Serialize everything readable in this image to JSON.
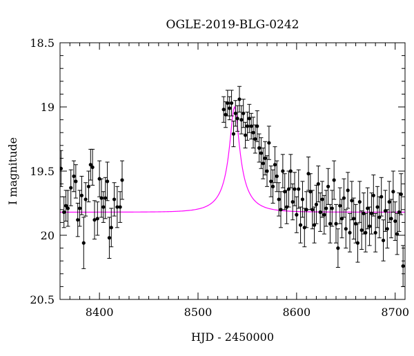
{
  "chart_data": {
    "type": "scatter",
    "title": "OGLE-2019-BLG-0242",
    "xlabel": "HJD - 2450000",
    "ylabel": "I magnitude",
    "xlim": [
      8360,
      8710
    ],
    "ylim": [
      20.5,
      18.5
    ],
    "y_inverted": true,
    "x_ticks": [
      "8400",
      "8500",
      "8600",
      "8700"
    ],
    "y_ticks": [
      "18.5",
      "19",
      "19.5",
      "20",
      "20.5"
    ],
    "colors": {
      "data": "#000000",
      "model": "#ff00ff",
      "axes": "#000000"
    },
    "legend": "none",
    "grid": false,
    "series": [
      {
        "kind": "points_with_errorbars",
        "points": [
          [
            8361,
            19.48,
            0.14
          ],
          [
            8364,
            19.82,
            0.12
          ],
          [
            8366,
            19.77,
            0.12
          ],
          [
            8368,
            19.79,
            0.14
          ],
          [
            8371,
            19.63,
            0.14
          ],
          [
            8374,
            19.54,
            0.12
          ],
          [
            8376,
            19.58,
            0.13
          ],
          [
            8378,
            19.88,
            0.13
          ],
          [
            8380,
            19.79,
            0.14
          ],
          [
            8382,
            19.69,
            0.15
          ],
          [
            8384,
            20.06,
            0.2
          ],
          [
            8386,
            19.72,
            0.13
          ],
          [
            8389,
            19.62,
            0.12
          ],
          [
            8391,
            19.45,
            0.12
          ],
          [
            8393,
            19.47,
            0.14
          ],
          [
            8395,
            19.88,
            0.15
          ],
          [
            8398,
            19.87,
            0.13
          ],
          [
            8400,
            19.56,
            0.14
          ],
          [
            8402,
            19.71,
            0.15
          ],
          [
            8404,
            19.78,
            0.12
          ],
          [
            8406,
            19.71,
            0.16
          ],
          [
            8408,
            19.58,
            0.15
          ],
          [
            8410,
            20.02,
            0.16
          ],
          [
            8412,
            19.94,
            0.15
          ],
          [
            8415,
            19.72,
            0.13
          ],
          [
            8418,
            19.78,
            0.16
          ],
          [
            8421,
            19.78,
            0.12
          ],
          [
            8423,
            19.57,
            0.15
          ],
          [
            8526,
            19.02,
            0.1
          ],
          [
            8528,
            19.06,
            0.1
          ],
          [
            8530,
            18.97,
            0.1
          ],
          [
            8532,
            19.01,
            0.09
          ],
          [
            8534,
            18.97,
            0.1
          ],
          [
            8536,
            19.21,
            0.1
          ],
          [
            8538,
            19.05,
            0.1
          ],
          [
            8540,
            19.09,
            0.1
          ],
          [
            8542,
            18.94,
            0.1
          ],
          [
            8544,
            19.1,
            0.11
          ],
          [
            8546,
            19.05,
            0.11
          ],
          [
            8548,
            19.22,
            0.1
          ],
          [
            8550,
            19.15,
            0.11
          ],
          [
            8552,
            19.09,
            0.11
          ],
          [
            8554,
            19.15,
            0.1
          ],
          [
            8556,
            19.2,
            0.12
          ],
          [
            8558,
            19.25,
            0.11
          ],
          [
            8560,
            19.15,
            0.12
          ],
          [
            8562,
            19.32,
            0.11
          ],
          [
            8564,
            19.36,
            0.12
          ],
          [
            8566,
            19.44,
            0.12
          ],
          [
            8568,
            19.4,
            0.13
          ],
          [
            8570,
            19.5,
            0.12
          ],
          [
            8572,
            19.28,
            0.13
          ],
          [
            8574,
            19.58,
            0.12
          ],
          [
            8576,
            19.62,
            0.13
          ],
          [
            8578,
            19.45,
            0.14
          ],
          [
            8580,
            19.54,
            0.12
          ],
          [
            8582,
            19.72,
            0.13
          ],
          [
            8584,
            19.8,
            0.14
          ],
          [
            8586,
            19.5,
            0.13
          ],
          [
            8588,
            19.66,
            0.14
          ],
          [
            8590,
            19.78,
            0.13
          ],
          [
            8592,
            19.64,
            0.14
          ],
          [
            8594,
            19.5,
            0.13
          ],
          [
            8596,
            19.74,
            0.14
          ],
          [
            8598,
            19.64,
            0.13
          ],
          [
            8600,
            19.84,
            0.14
          ],
          [
            8602,
            19.64,
            0.15
          ],
          [
            8604,
            19.92,
            0.14
          ],
          [
            8606,
            19.72,
            0.14
          ],
          [
            8608,
            19.94,
            0.15
          ],
          [
            8610,
            19.8,
            0.14
          ],
          [
            8612,
            19.52,
            0.13
          ],
          [
            8614,
            19.66,
            0.14
          ],
          [
            8616,
            19.8,
            0.15
          ],
          [
            8618,
            19.92,
            0.14
          ],
          [
            8620,
            19.76,
            0.15
          ],
          [
            8622,
            19.6,
            0.14
          ],
          [
            8624,
            19.82,
            0.15
          ],
          [
            8626,
            19.72,
            0.14
          ],
          [
            8628,
            19.84,
            0.15
          ],
          [
            8630,
            19.79,
            0.14
          ],
          [
            8632,
            19.62,
            0.14
          ],
          [
            8634,
            19.91,
            0.15
          ],
          [
            8636,
            19.79,
            0.14
          ],
          [
            8638,
            19.57,
            0.15
          ],
          [
            8640,
            19.91,
            0.15
          ],
          [
            8642,
            20.1,
            0.15
          ],
          [
            8644,
            19.77,
            0.14
          ],
          [
            8646,
            19.87,
            0.15
          ],
          [
            8648,
            19.71,
            0.15
          ],
          [
            8650,
            19.95,
            0.15
          ],
          [
            8652,
            19.65,
            0.14
          ],
          [
            8654,
            19.98,
            0.15
          ],
          [
            8656,
            19.73,
            0.15
          ],
          [
            8658,
            19.87,
            0.16
          ],
          [
            8660,
            19.91,
            0.15
          ],
          [
            8662,
            20.06,
            0.15
          ],
          [
            8664,
            19.74,
            0.16
          ],
          [
            8666,
            19.96,
            0.15
          ],
          [
            8668,
            19.83,
            0.16
          ],
          [
            8670,
            19.98,
            0.15
          ],
          [
            8672,
            19.79,
            0.16
          ],
          [
            8674,
            19.93,
            0.15
          ],
          [
            8676,
            19.83,
            0.16
          ],
          [
            8678,
            19.69,
            0.16
          ],
          [
            8680,
            19.98,
            0.15
          ],
          [
            8682,
            19.78,
            0.16
          ],
          [
            8684,
            19.86,
            0.16
          ],
          [
            8686,
            19.7,
            0.15
          ],
          [
            8688,
            20.04,
            0.16
          ],
          [
            8690,
            19.81,
            0.16
          ],
          [
            8692,
            19.95,
            0.15
          ],
          [
            8694,
            19.74,
            0.16
          ],
          [
            8696,
            19.87,
            0.15
          ],
          [
            8698,
            19.66,
            0.16
          ],
          [
            8700,
            19.89,
            0.15
          ],
          [
            8702,
            19.99,
            0.16
          ],
          [
            8704,
            19.82,
            0.15
          ],
          [
            8706,
            19.68,
            0.16
          ],
          [
            8708,
            20.24,
            0.16
          ]
        ]
      },
      {
        "kind": "model_curve",
        "params": {
          "t0": 8537,
          "baseline": 19.82,
          "peak": 19.0,
          "u0": 0.2,
          "tE": 24
        }
      }
    ]
  }
}
